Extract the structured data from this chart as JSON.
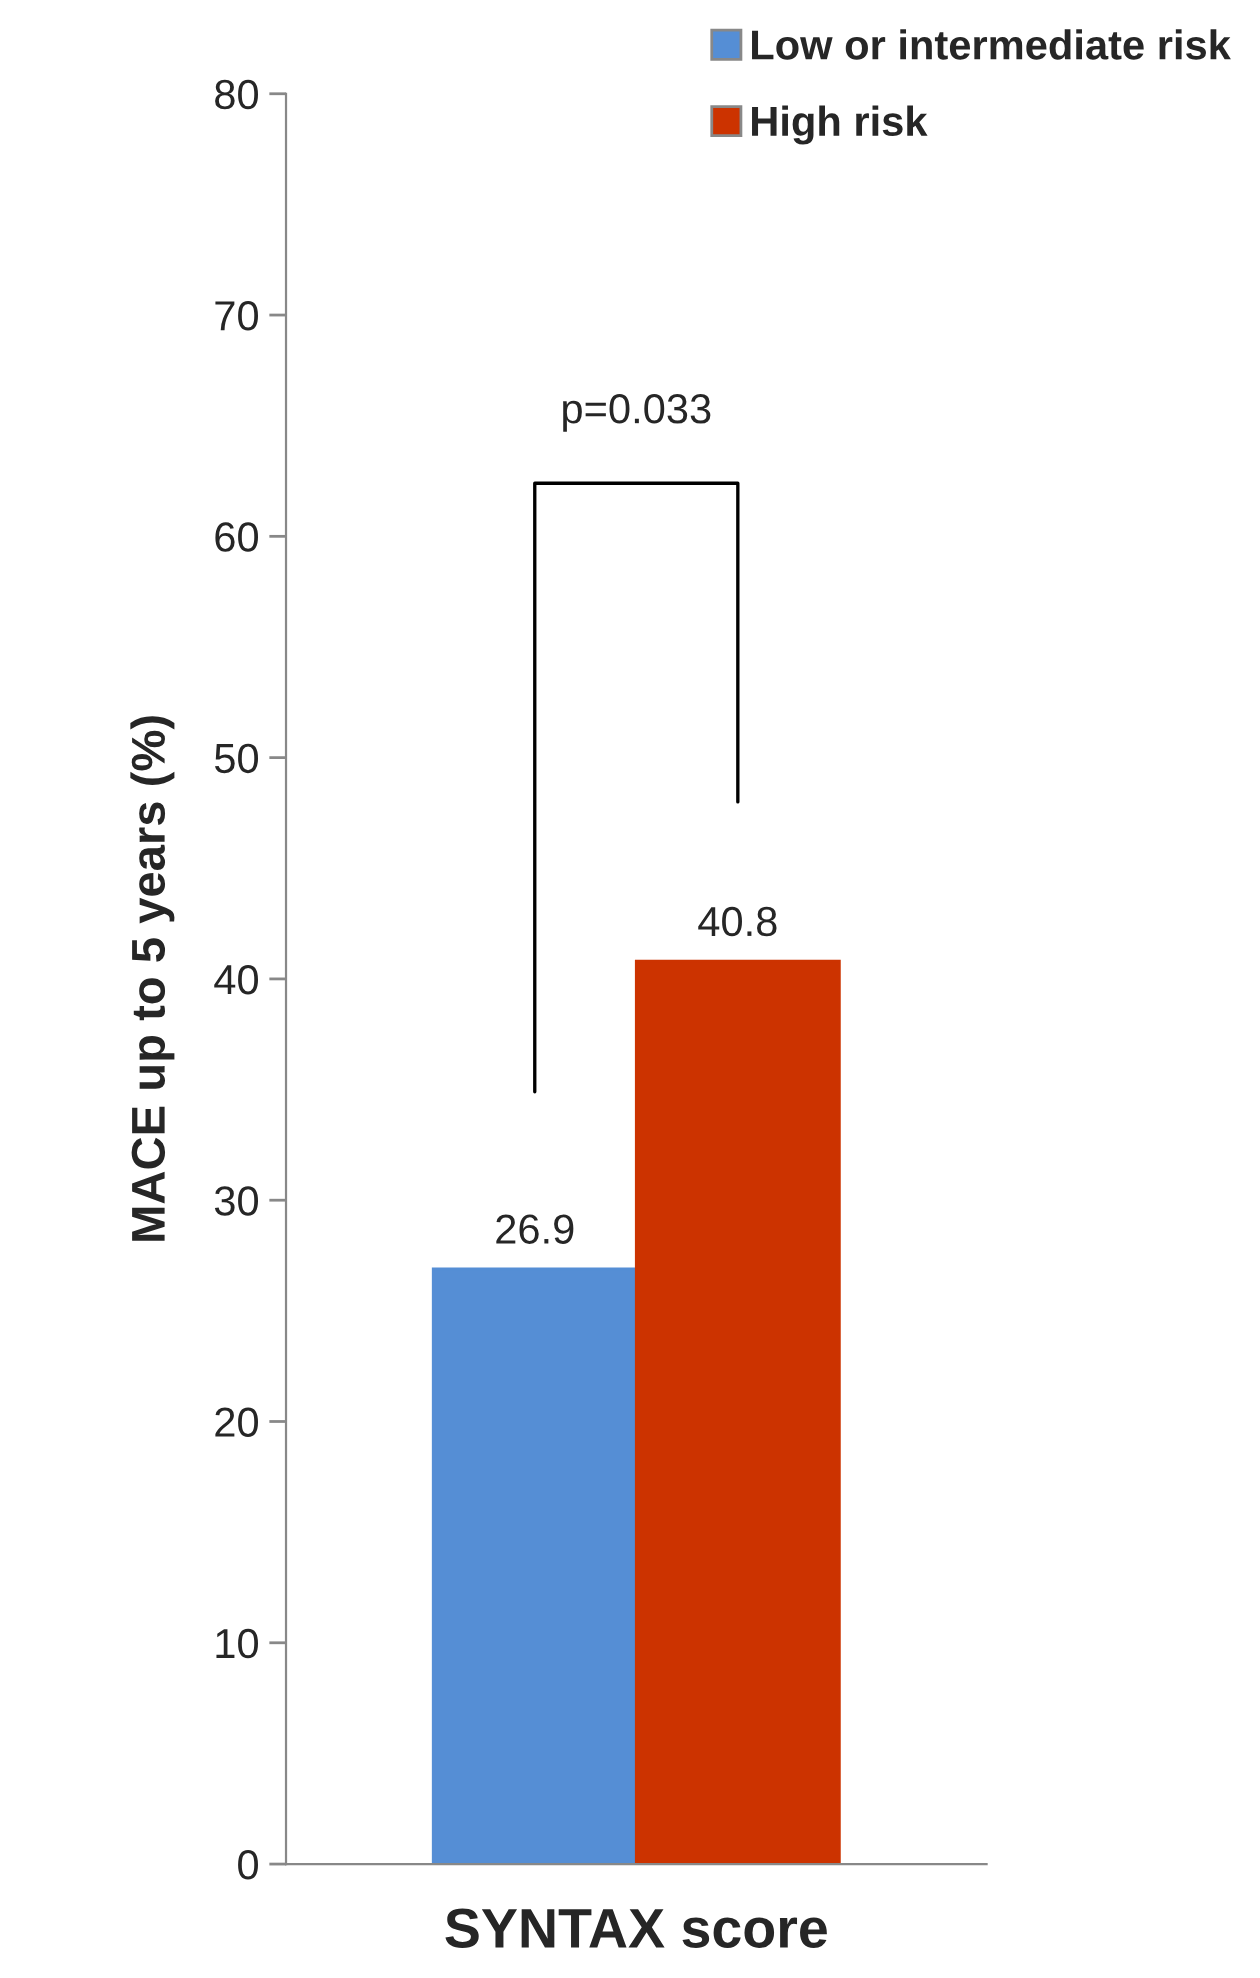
{
  "chart_data": {
    "type": "bar",
    "xlabel": "SYNTAX score",
    "ylabel": "MACE up to 5 years (%)",
    "categories": [
      null
    ],
    "series": [
      {
        "name": "Low or intermediate risk",
        "color": "#558ed5",
        "values": [
          26.9
        ]
      },
      {
        "name": "High risk",
        "color": "#cc3300",
        "values": [
          40.8
        ]
      }
    ],
    "ylim": [
      0,
      80
    ],
    "yticks": [
      0,
      10,
      20,
      30,
      40,
      50,
      60,
      70,
      80
    ],
    "data_labels": true,
    "legend": "top right",
    "grid": false,
    "annotations": [
      "p=0.033"
    ]
  }
}
